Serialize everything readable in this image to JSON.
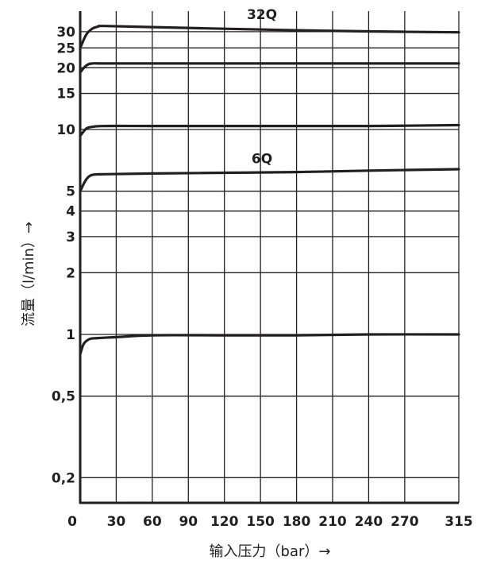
{
  "chart_data": {
    "type": "line",
    "title": "",
    "xlabel": "输入压力（bar）→",
    "ylabel": "流量（l/min）→",
    "x_scale": "linear",
    "y_scale": "log",
    "xlim": [
      0,
      315
    ],
    "ylim": [
      0.15,
      40
    ],
    "grid": true,
    "x_ticks": [
      0,
      30,
      60,
      90,
      120,
      150,
      180,
      210,
      240,
      270,
      315
    ],
    "x_tick_labels": [
      "0",
      "30",
      "60",
      "90",
      "120",
      "150",
      "180",
      "210",
      "240",
      "270",
      "315"
    ],
    "y_ticks": [
      0.2,
      0.5,
      1,
      2,
      3,
      4,
      5,
      10,
      15,
      20,
      25,
      30
    ],
    "y_tick_labels": [
      "0,2",
      "0,5",
      "1",
      "2",
      "3",
      "4",
      "5",
      "10",
      "15",
      "20",
      "25",
      "30"
    ],
    "series": [
      {
        "name": "32Q",
        "label": "32Q",
        "x": [
          0,
          5,
          10,
          15,
          20,
          60,
          120,
          180,
          240,
          315
        ],
        "y": [
          25,
          29,
          31,
          31.8,
          32,
          31.6,
          31,
          30.5,
          30.1,
          29.8
        ]
      },
      {
        "name": "",
        "x": [
          0,
          5,
          10,
          20,
          60,
          120,
          180,
          240,
          315
        ],
        "y": [
          19,
          20.5,
          21,
          21,
          21,
          21,
          21,
          21,
          21
        ]
      },
      {
        "name": "",
        "x": [
          0,
          5,
          10,
          20,
          60,
          120,
          180,
          240,
          315
        ],
        "y": [
          9.3,
          10.1,
          10.3,
          10.4,
          10.4,
          10.4,
          10.4,
          10.4,
          10.5
        ]
      },
      {
        "name": "6Q",
        "label": "6Q",
        "x": [
          0,
          5,
          10,
          20,
          60,
          120,
          180,
          240,
          315
        ],
        "y": [
          5,
          5.7,
          6,
          6.05,
          6.1,
          6.15,
          6.2,
          6.3,
          6.4
        ]
      },
      {
        "name": "",
        "x": [
          0,
          3,
          8,
          15,
          30,
          60,
          120,
          180,
          240,
          315
        ],
        "y": [
          0.8,
          0.9,
          0.95,
          0.96,
          0.97,
          0.99,
          0.99,
          0.99,
          1.0,
          1.0
        ]
      }
    ]
  }
}
